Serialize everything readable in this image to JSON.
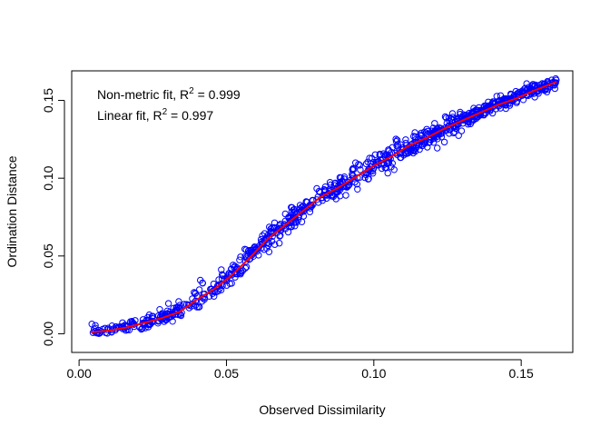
{
  "chart_data": {
    "type": "scatter",
    "xlabel": "Observed Dissimilarity",
    "ylabel": "Ordination Distance",
    "xlim": [
      -0.0025,
      0.1675
    ],
    "ylim": [
      -0.012,
      0.169
    ],
    "x_ticks": [
      0.0,
      0.05,
      0.1,
      0.15
    ],
    "x_tick_labels": [
      "0.00",
      "0.05",
      "0.10",
      "0.15"
    ],
    "y_ticks": [
      0.0,
      0.05,
      0.1,
      0.15
    ],
    "y_tick_labels": [
      "0.00",
      "0.05",
      "0.10",
      "0.15"
    ],
    "legend_position": "top-left",
    "annotations": [
      {
        "prefix": "Non-metric fit, R",
        "superscript": "2",
        "suffix": " = 0.999"
      },
      {
        "prefix": "Linear fit, R",
        "superscript": "2",
        "suffix": " = 0.997"
      }
    ],
    "point_color": "#0000ff",
    "fit_color": "#ff0000",
    "frame_color": "#000000",
    "points": {
      "series_name": "",
      "x_range": [
        0.004,
        0.162
      ],
      "approx_count": 900,
      "scatter_sd": 0.0035,
      "trend_knots": [
        {
          "x": 0.004,
          "y": 0.001
        },
        {
          "x": 0.01,
          "y": 0.002
        },
        {
          "x": 0.02,
          "y": 0.006
        },
        {
          "x": 0.03,
          "y": 0.011
        },
        {
          "x": 0.04,
          "y": 0.022
        },
        {
          "x": 0.05,
          "y": 0.034
        },
        {
          "x": 0.06,
          "y": 0.054
        },
        {
          "x": 0.07,
          "y": 0.07
        },
        {
          "x": 0.08,
          "y": 0.085
        },
        {
          "x": 0.09,
          "y": 0.097
        },
        {
          "x": 0.1,
          "y": 0.108
        },
        {
          "x": 0.11,
          "y": 0.119
        },
        {
          "x": 0.12,
          "y": 0.128
        },
        {
          "x": 0.13,
          "y": 0.137
        },
        {
          "x": 0.14,
          "y": 0.146
        },
        {
          "x": 0.15,
          "y": 0.154
        },
        {
          "x": 0.162,
          "y": 0.162
        }
      ]
    },
    "fit_line": {
      "x": [
        0.004,
        0.01,
        0.016,
        0.022,
        0.028,
        0.034,
        0.04,
        0.046,
        0.052,
        0.058,
        0.064,
        0.07,
        0.076,
        0.082,
        0.088,
        0.094,
        0.1,
        0.106,
        0.112,
        0.118,
        0.124,
        0.13,
        0.136,
        0.142,
        0.148,
        0.154,
        0.162
      ],
      "y": [
        0.001,
        0.002,
        0.004,
        0.007,
        0.01,
        0.014,
        0.022,
        0.029,
        0.038,
        0.049,
        0.061,
        0.07,
        0.079,
        0.088,
        0.094,
        0.101,
        0.108,
        0.114,
        0.121,
        0.126,
        0.132,
        0.137,
        0.142,
        0.147,
        0.151,
        0.156,
        0.162
      ]
    }
  }
}
